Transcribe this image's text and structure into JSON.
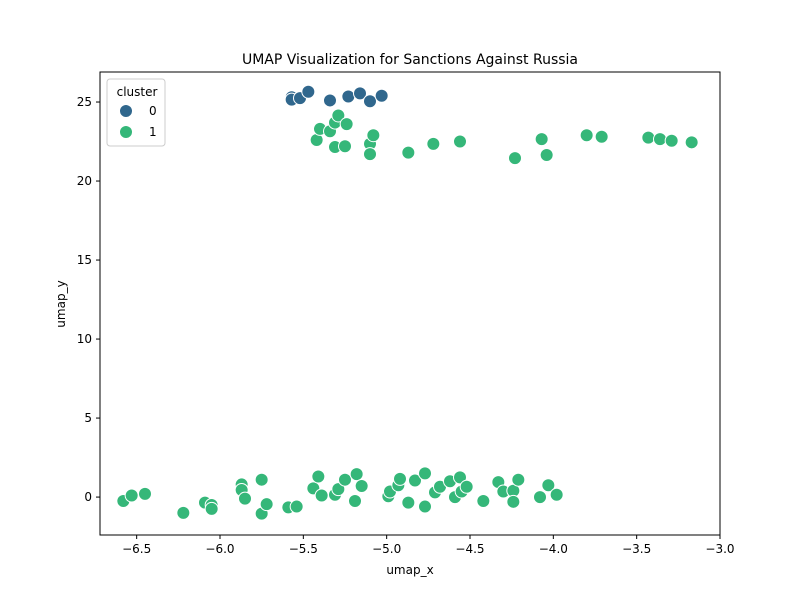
{
  "chart_data": {
    "type": "scatter",
    "title": "UMAP Visualization for Sanctions Against Russia",
    "xlabel": "umap_x",
    "ylabel": "umap_y",
    "xlim": [
      -6.72,
      -3.0
    ],
    "ylim": [
      -2.4,
      26.9
    ],
    "xticks": [
      -6.5,
      -6.0,
      -5.5,
      -5.0,
      -4.5,
      -4.0,
      -3.5,
      -3.0
    ],
    "xtick_labels": [
      "−6.5",
      "−6.0",
      "−5.5",
      "−5.0",
      "−4.5",
      "−4.0",
      "−3.5",
      "−3.0"
    ],
    "yticks": [
      0,
      5,
      10,
      15,
      20,
      25
    ],
    "ytick_labels": [
      "0",
      "5",
      "10",
      "15",
      "20",
      "25"
    ],
    "grid": false,
    "legend": {
      "title": "cluster",
      "placement": "top-left"
    },
    "series": [
      {
        "name": "0",
        "color": "#30678d",
        "points": [
          [
            -5.57,
            25.3
          ],
          [
            -5.57,
            25.15
          ],
          [
            -5.52,
            25.25
          ],
          [
            -5.47,
            25.65
          ],
          [
            -5.34,
            25.1
          ],
          [
            -5.23,
            25.35
          ],
          [
            -5.16,
            25.55
          ],
          [
            -5.1,
            25.05
          ],
          [
            -5.03,
            25.4
          ]
        ]
      },
      {
        "name": "1",
        "color": "#35b779",
        "points": [
          [
            -5.42,
            22.6
          ],
          [
            -5.4,
            23.3
          ],
          [
            -5.34,
            23.15
          ],
          [
            -5.31,
            23.7
          ],
          [
            -5.31,
            22.15
          ],
          [
            -5.29,
            24.15
          ],
          [
            -5.25,
            22.2
          ],
          [
            -5.24,
            23.6
          ],
          [
            -5.1,
            22.35
          ],
          [
            -5.1,
            21.7
          ],
          [
            -5.08,
            22.9
          ],
          [
            -4.87,
            21.8
          ],
          [
            -4.72,
            22.35
          ],
          [
            -4.56,
            22.5
          ],
          [
            -4.23,
            21.45
          ],
          [
            -4.07,
            22.65
          ],
          [
            -4.04,
            21.65
          ],
          [
            -3.8,
            22.9
          ],
          [
            -3.71,
            22.8
          ],
          [
            -3.43,
            22.75
          ],
          [
            -3.36,
            22.65
          ],
          [
            -3.29,
            22.55
          ],
          [
            -3.17,
            22.45
          ],
          [
            -6.58,
            -0.25
          ],
          [
            -6.53,
            0.1
          ],
          [
            -6.45,
            0.2
          ],
          [
            -6.22,
            -1.0
          ],
          [
            -6.09,
            -0.35
          ],
          [
            -6.05,
            -0.5
          ],
          [
            -6.05,
            -0.75
          ],
          [
            -5.87,
            0.8
          ],
          [
            -5.87,
            0.45
          ],
          [
            -5.85,
            -0.1
          ],
          [
            -5.75,
            1.1
          ],
          [
            -5.75,
            -1.05
          ],
          [
            -5.72,
            -0.45
          ],
          [
            -5.59,
            -0.65
          ],
          [
            -5.54,
            -0.6
          ],
          [
            -5.44,
            0.55
          ],
          [
            -5.41,
            1.3
          ],
          [
            -5.39,
            0.1
          ],
          [
            -5.31,
            0.15
          ],
          [
            -5.29,
            0.5
          ],
          [
            -5.25,
            1.1
          ],
          [
            -5.19,
            -0.25
          ],
          [
            -5.18,
            1.45
          ],
          [
            -5.15,
            0.7
          ],
          [
            -4.99,
            0.05
          ],
          [
            -4.98,
            0.35
          ],
          [
            -4.93,
            0.75
          ],
          [
            -4.92,
            1.15
          ],
          [
            -4.87,
            -0.35
          ],
          [
            -4.83,
            1.05
          ],
          [
            -4.77,
            1.5
          ],
          [
            -4.77,
            -0.6
          ],
          [
            -4.71,
            0.3
          ],
          [
            -4.68,
            0.65
          ],
          [
            -4.62,
            1.0
          ],
          [
            -4.59,
            0.0
          ],
          [
            -4.56,
            1.25
          ],
          [
            -4.55,
            0.35
          ],
          [
            -4.52,
            0.65
          ],
          [
            -4.42,
            -0.25
          ],
          [
            -4.33,
            0.95
          ],
          [
            -4.3,
            0.35
          ],
          [
            -4.24,
            0.4
          ],
          [
            -4.24,
            -0.3
          ],
          [
            -4.21,
            1.1
          ],
          [
            -4.08,
            0.0
          ],
          [
            -4.03,
            0.75
          ],
          [
            -3.98,
            0.15
          ]
        ]
      }
    ]
  }
}
